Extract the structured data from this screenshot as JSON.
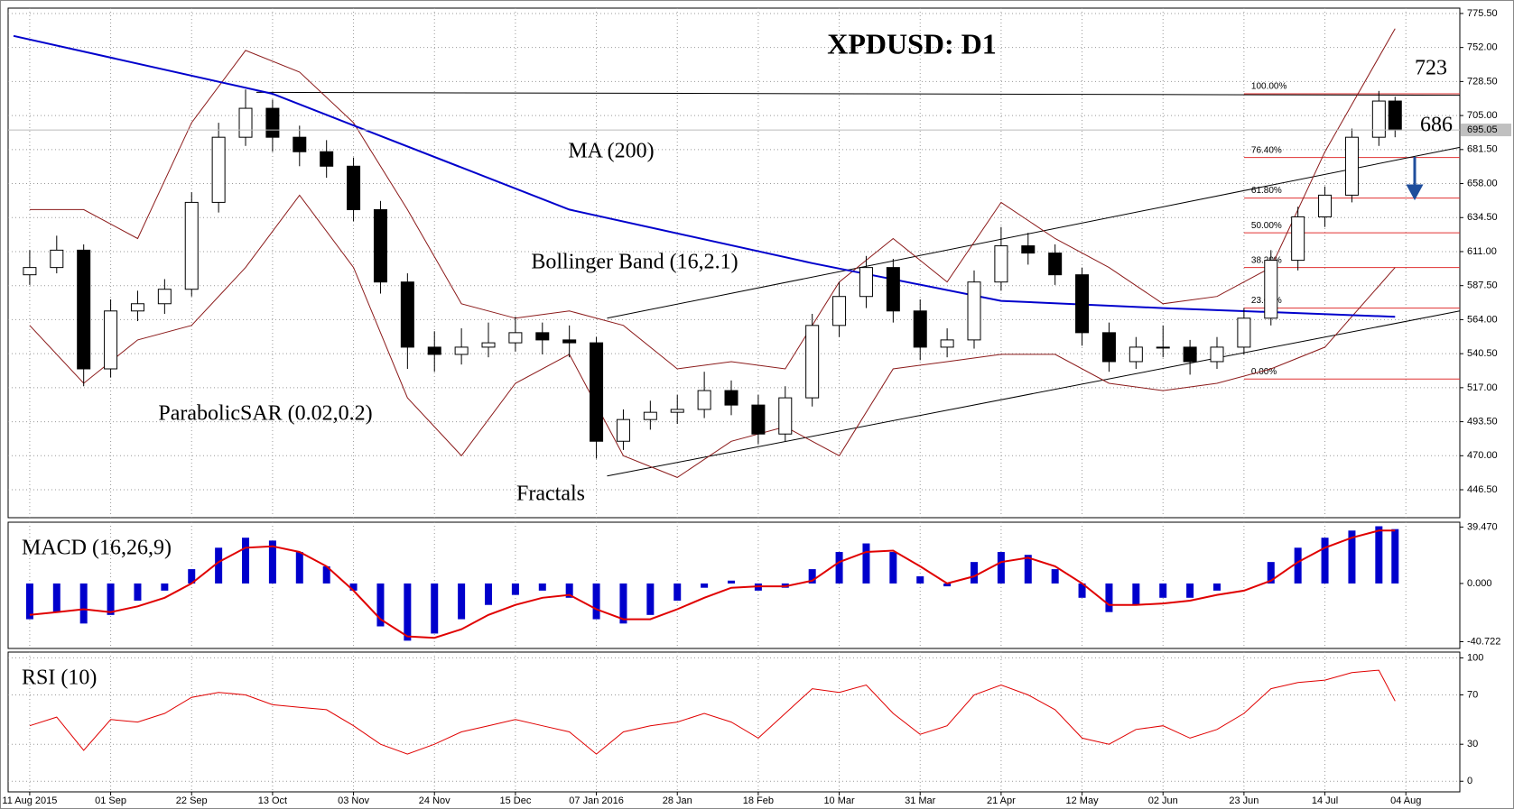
{
  "chart_data": {
    "type": "candlestick",
    "title": "XPDUSD: D1",
    "grid": true,
    "xlim": [
      -4,
      265
    ],
    "xticks": [
      {
        "value": 0,
        "label": "11 Aug 2015"
      },
      {
        "value": 15,
        "label": "01 Sep"
      },
      {
        "value": 30,
        "label": "22 Sep"
      },
      {
        "value": 45,
        "label": "13 Oct"
      },
      {
        "value": 60,
        "label": "03 Nov"
      },
      {
        "value": 75,
        "label": "24 Nov"
      },
      {
        "value": 90,
        "label": "15 Dec"
      },
      {
        "value": 105,
        "label": "07 Jan 2016"
      },
      {
        "value": 120,
        "label": "28 Jan"
      },
      {
        "value": 135,
        "label": "18 Feb"
      },
      {
        "value": 150,
        "label": "10 Mar"
      },
      {
        "value": 165,
        "label": "31 Mar"
      },
      {
        "value": 180,
        "label": "21 Apr"
      },
      {
        "value": 195,
        "label": "12 May"
      },
      {
        "value": 210,
        "label": "02 Jun"
      },
      {
        "value": 225,
        "label": "23 Jun"
      },
      {
        "value": 240,
        "label": "14 Jul"
      },
      {
        "value": 255,
        "label": "04 Aug"
      }
    ],
    "ylim": [
      427.2,
      779.2
    ],
    "yticks": [
      {
        "value": 775.5,
        "label": "775.50"
      },
      {
        "value": 752,
        "label": "752.00"
      },
      {
        "value": 728.5,
        "label": "728.50"
      },
      {
        "value": 705,
        "label": "705.00"
      },
      {
        "value": 681.5,
        "label": "681.50"
      },
      {
        "value": 658,
        "label": "658.00"
      },
      {
        "value": 634.5,
        "label": "634.50"
      },
      {
        "value": 611,
        "label": "611.00"
      },
      {
        "value": 587.5,
        "label": "587.50"
      },
      {
        "value": 564,
        "label": "564.00"
      },
      {
        "value": 540.5,
        "label": "540.50"
      },
      {
        "value": 517,
        "label": "517.00"
      },
      {
        "value": 493.5,
        "label": "493.50"
      },
      {
        "value": 470,
        "label": "470.00"
      },
      {
        "value": 446.5,
        "label": "446.50"
      }
    ],
    "x": [
      0,
      5,
      10,
      15,
      20,
      25,
      30,
      35,
      40,
      45,
      50,
      55,
      60,
      65,
      70,
      75,
      80,
      85,
      90,
      95,
      100,
      105,
      110,
      115,
      120,
      125,
      130,
      135,
      140,
      145,
      150,
      155,
      160,
      165,
      170,
      175,
      180,
      185,
      190,
      195,
      200,
      205,
      210,
      215,
      220,
      225,
      230,
      235,
      240,
      245,
      250,
      253
    ],
    "ohlc": [
      [
        595,
        612,
        588,
        600
      ],
      [
        600,
        622,
        596,
        612
      ],
      [
        612,
        616,
        518,
        530
      ],
      [
        530,
        578,
        524,
        570
      ],
      [
        570,
        584,
        563,
        575
      ],
      [
        575,
        592,
        568,
        585
      ],
      [
        585,
        652,
        580,
        645
      ],
      [
        645,
        700,
        638,
        690
      ],
      [
        690,
        723,
        684,
        710
      ],
      [
        710,
        716,
        680,
        690
      ],
      [
        690,
        698,
        670,
        680
      ],
      [
        680,
        688,
        662,
        670
      ],
      [
        670,
        676,
        632,
        640
      ],
      [
        640,
        646,
        582,
        590
      ],
      [
        590,
        596,
        530,
        545
      ],
      [
        545,
        556,
        528,
        540
      ],
      [
        540,
        558,
        533,
        545
      ],
      [
        545,
        562,
        538,
        548
      ],
      [
        548,
        566,
        542,
        555
      ],
      [
        555,
        562,
        540,
        550
      ],
      [
        550,
        560,
        538,
        548
      ],
      [
        548,
        552,
        468,
        480
      ],
      [
        480,
        502,
        474,
        495
      ],
      [
        495,
        508,
        488,
        500
      ],
      [
        500,
        512,
        492,
        502
      ],
      [
        502,
        528,
        496,
        515
      ],
      [
        515,
        522,
        498,
        505
      ],
      [
        505,
        512,
        478,
        485
      ],
      [
        485,
        518,
        480,
        510
      ],
      [
        510,
        568,
        504,
        560
      ],
      [
        560,
        590,
        552,
        580
      ],
      [
        580,
        608,
        572,
        600
      ],
      [
        600,
        606,
        562,
        570
      ],
      [
        570,
        578,
        536,
        545
      ],
      [
        545,
        558,
        538,
        550
      ],
      [
        550,
        598,
        544,
        590
      ],
      [
        590,
        628,
        584,
        615
      ],
      [
        615,
        624,
        602,
        610
      ],
      [
        610,
        616,
        588,
        595
      ],
      [
        595,
        600,
        546,
        555
      ],
      [
        555,
        562,
        528,
        535
      ],
      [
        535,
        552,
        530,
        545
      ],
      [
        545,
        560,
        538,
        545
      ],
      [
        545,
        550,
        526,
        535
      ],
      [
        535,
        552,
        530,
        545
      ],
      [
        545,
        572,
        540,
        565
      ],
      [
        565,
        612,
        560,
        605
      ],
      [
        605,
        642,
        598,
        635
      ],
      [
        635,
        656,
        628,
        650
      ],
      [
        650,
        696,
        645,
        690
      ],
      [
        690,
        722,
        684,
        715
      ],
      [
        715,
        718,
        690,
        695
      ]
    ],
    "last_price": {
      "value": 695.05,
      "label": "695.05"
    },
    "ma": {
      "name": "MA (200)",
      "color": "#0000cc",
      "x": [
        -3,
        45,
        100,
        145,
        180,
        210,
        253
      ],
      "values": [
        760,
        720,
        640,
        603,
        577,
        572,
        566
      ]
    },
    "bollinger": {
      "name": "Bollinger Band (16,2.1)",
      "color": "#8b1a1a",
      "x": [
        0,
        10,
        20,
        30,
        40,
        50,
        60,
        70,
        80,
        90,
        100,
        110,
        120,
        130,
        140,
        150,
        160,
        170,
        180,
        190,
        200,
        210,
        220,
        230,
        240,
        253
      ],
      "upper": [
        640,
        640,
        620,
        700,
        750,
        735,
        700,
        640,
        575,
        565,
        570,
        560,
        530,
        535,
        530,
        590,
        620,
        590,
        645,
        620,
        600,
        575,
        580,
        600,
        680,
        765
      ],
      "lower": [
        560,
        520,
        550,
        560,
        600,
        650,
        600,
        510,
        470,
        520,
        540,
        470,
        455,
        480,
        490,
        470,
        530,
        535,
        540,
        540,
        520,
        515,
        520,
        530,
        545,
        600
      ]
    },
    "lines": [
      {
        "x": [
          42,
          265
        ],
        "y": [
          721,
          719
        ]
      },
      {
        "x": [
          107,
          265
        ],
        "y": [
          565,
          683
        ]
      },
      {
        "x": [
          107,
          265
        ],
        "y": [
          456,
          570
        ]
      }
    ],
    "fibonacci": {
      "color": "#e03030",
      "x": [
        225,
        265
      ],
      "levels": [
        {
          "label": "100.00%",
          "value": 720
        },
        {
          "label": "76.40%",
          "value": 676
        },
        {
          "label": "61.80%",
          "value": 648
        },
        {
          "label": "50.00%",
          "value": 624
        },
        {
          "label": "38.20%",
          "value": 600
        },
        {
          "label": "23.60%",
          "value": 572
        },
        {
          "label": "0.00%",
          "value": 523
        }
      ]
    },
    "annotations": [
      "723",
      "686",
      "ParabolicSAR (0.02,0.2)",
      "Fractals"
    ],
    "macd": {
      "title": "MACD (16,26,9)",
      "ylim": [
        -45.44,
        42.84
      ],
      "yticks": [
        {
          "value": 39.47,
          "label": "39.470"
        },
        {
          "value": 0,
          "label": "0.000"
        },
        {
          "value": -40.722,
          "label": "-40.722"
        }
      ],
      "histogram": {
        "color": "#0000cc",
        "values": [
          -25,
          -20,
          -28,
          -22,
          -12,
          -5,
          10,
          25,
          32,
          30,
          22,
          12,
          -5,
          -30,
          -40,
          -35,
          -25,
          -15,
          -8,
          -5,
          -10,
          -25,
          -28,
          -22,
          -12,
          -3,
          2,
          -5,
          -3,
          10,
          22,
          28,
          22,
          5,
          -2,
          15,
          22,
          20,
          10,
          -10,
          -20,
          -15,
          -10,
          -10,
          -5,
          0,
          15,
          25,
          32,
          37,
          40,
          38
        ]
      },
      "signal": {
        "color": "#e00000",
        "values": [
          -22,
          -20,
          -18,
          -20,
          -16,
          -10,
          0,
          15,
          25,
          26,
          22,
          12,
          -5,
          -25,
          -37,
          -38,
          -32,
          -22,
          -15,
          -10,
          -8,
          -18,
          -25,
          -25,
          -18,
          -10,
          -3,
          -2,
          -2,
          2,
          15,
          22,
          23,
          12,
          0,
          5,
          15,
          18,
          12,
          0,
          -15,
          -15,
          -14,
          -12,
          -8,
          -5,
          2,
          15,
          25,
          32,
          37,
          37
        ]
      }
    },
    "rsi": {
      "title": "RSI (10)",
      "ylim": [
        -8.6,
        104.7
      ],
      "yticks": [
        100,
        70,
        30,
        0
      ],
      "color": "#e00000",
      "values": [
        45,
        52,
        25,
        50,
        48,
        55,
        68,
        72,
        70,
        62,
        60,
        58,
        45,
        30,
        22,
        30,
        40,
        45,
        50,
        45,
        40,
        22,
        40,
        45,
        48,
        55,
        48,
        35,
        55,
        75,
        72,
        78,
        55,
        38,
        45,
        70,
        78,
        70,
        58,
        35,
        30,
        42,
        45,
        35,
        42,
        55,
        75,
        80,
        82,
        88,
        90,
        65
      ]
    }
  }
}
